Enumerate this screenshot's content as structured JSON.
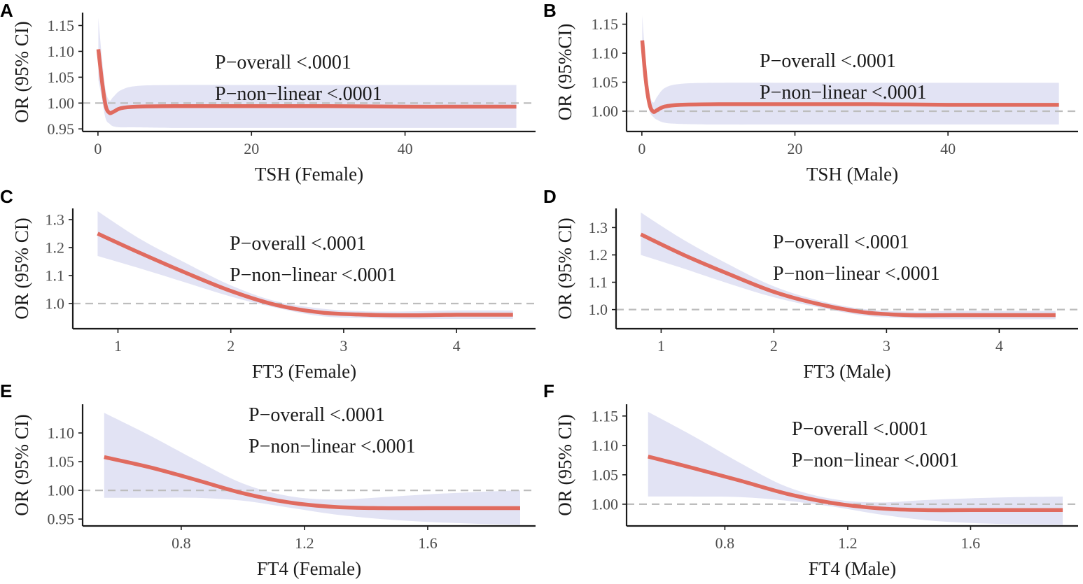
{
  "figure": {
    "ref_line_color": "#bdbdbd",
    "band_color": "#e2e3f4",
    "curve_color": "#e06b5f"
  },
  "chart_data": [
    {
      "id": "A",
      "type": "line",
      "panel_label": "A",
      "xlabel": "TSH (Female)",
      "ylabel": "OR (95% CI)",
      "xlim": [
        -2,
        57
      ],
      "ylim": [
        0.945,
        1.175
      ],
      "xticks": [
        0,
        20,
        40
      ],
      "xtick_labels": [
        "0",
        "20",
        "40"
      ],
      "yticks": [
        0.95,
        1.0,
        1.05,
        1.1,
        1.15
      ],
      "ytick_labels": [
        "0.95",
        "1.00",
        "1.05",
        "1.10",
        "1.15"
      ],
      "ref_y": 1.0,
      "annotations": [
        "P−overall <.0001",
        "P−non−linear <.0001"
      ],
      "x": [
        0.05,
        0.5,
        1.0,
        1.5,
        2.0,
        3.0,
        5.0,
        10,
        20,
        30,
        40,
        50,
        54.5
      ],
      "or": [
        1.104,
        1.045,
        0.995,
        0.981,
        0.983,
        0.99,
        0.993,
        0.994,
        0.994,
        0.994,
        0.993,
        0.993,
        0.993
      ],
      "lower": [
        1.045,
        1.01,
        0.97,
        0.96,
        0.955,
        0.953,
        0.953,
        0.952,
        0.952,
        0.952,
        0.952,
        0.952,
        0.952
      ],
      "upper": [
        1.165,
        1.09,
        1.025,
        1.005,
        1.012,
        1.025,
        1.033,
        1.035,
        1.035,
        1.035,
        1.035,
        1.035,
        1.035
      ]
    },
    {
      "id": "B",
      "type": "line",
      "panel_label": "B",
      "xlabel": "TSH (Male)",
      "ylabel": "OR (95%CI)",
      "xlim": [
        -2,
        57
      ],
      "ylim": [
        0.965,
        1.17
      ],
      "xticks": [
        0,
        20,
        40
      ],
      "xtick_labels": [
        "0",
        "20",
        "40"
      ],
      "yticks": [
        1.0,
        1.05,
        1.1,
        1.15
      ],
      "ytick_labels": [
        "1.00",
        "1.05",
        "1.10",
        "1.15"
      ],
      "ref_y": 1.0,
      "annotations": [
        "P−overall <.0001",
        "P−non−linear <.0001"
      ],
      "x": [
        0.05,
        0.5,
        1.0,
        1.5,
        2.0,
        3.0,
        5.0,
        10,
        20,
        30,
        40,
        50,
        54.5
      ],
      "or": [
        1.122,
        1.055,
        1.012,
        0.999,
        1.002,
        1.008,
        1.011,
        1.012,
        1.012,
        1.012,
        1.011,
        1.011,
        1.011
      ],
      "lower": [
        1.08,
        1.03,
        1.0,
        0.99,
        0.985,
        0.98,
        0.978,
        0.977,
        0.977,
        0.977,
        0.977,
        0.977,
        0.977
      ],
      "upper": [
        1.165,
        1.085,
        1.03,
        1.015,
        1.025,
        1.04,
        1.047,
        1.049,
        1.049,
        1.049,
        1.049,
        1.049,
        1.049
      ]
    },
    {
      "id": "C",
      "type": "line",
      "panel_label": "C",
      "xlabel": "FT3 (Female)",
      "ylabel": "OR (95% CI)",
      "xlim": [
        0.6,
        4.7
      ],
      "ylim": [
        0.91,
        1.34
      ],
      "xticks": [
        1,
        2,
        3,
        4
      ],
      "xtick_labels": [
        "1",
        "2",
        "3",
        "4"
      ],
      "yticks": [
        1.0,
        1.1,
        1.2,
        1.3
      ],
      "ytick_labels": [
        "1.0",
        "1.1",
        "1.2",
        "1.3"
      ],
      "ref_y": 1.0,
      "annotations": [
        "P−overall <.0001",
        "P−non−linear <.0001"
      ],
      "x": [
        0.82,
        1.2,
        1.6,
        2.0,
        2.4,
        2.8,
        3.2,
        3.6,
        4.0,
        4.5
      ],
      "or": [
        1.25,
        1.18,
        1.11,
        1.045,
        0.995,
        0.968,
        0.96,
        0.958,
        0.96,
        0.96
      ],
      "lower": [
        1.17,
        1.125,
        1.075,
        1.025,
        0.985,
        0.955,
        0.948,
        0.945,
        0.945,
        0.945
      ],
      "upper": [
        1.33,
        1.23,
        1.145,
        1.065,
        1.008,
        0.982,
        0.972,
        0.972,
        0.975,
        0.975
      ]
    },
    {
      "id": "D",
      "type": "line",
      "panel_label": "D",
      "xlabel": "FT3 (Male)",
      "ylabel": "OR (95% CI)",
      "xlim": [
        0.6,
        4.7
      ],
      "ylim": [
        0.93,
        1.37
      ],
      "xticks": [
        1,
        2,
        3,
        4
      ],
      "xtick_labels": [
        "1",
        "2",
        "3",
        "4"
      ],
      "yticks": [
        1.0,
        1.1,
        1.2,
        1.3
      ],
      "ytick_labels": [
        "1.0",
        "1.1",
        "1.2",
        "1.3"
      ],
      "ref_y": 1.0,
      "annotations": [
        "P−overall <.0001",
        "P−non−linear <.0001"
      ],
      "x": [
        0.82,
        1.2,
        1.6,
        2.0,
        2.4,
        2.8,
        3.2,
        3.6,
        4.0,
        4.5
      ],
      "or": [
        1.275,
        1.2,
        1.13,
        1.065,
        1.02,
        0.99,
        0.98,
        0.98,
        0.98,
        0.98
      ],
      "lower": [
        1.2,
        1.15,
        1.095,
        1.045,
        1.008,
        0.978,
        0.968,
        0.965,
        0.965,
        0.965
      ],
      "upper": [
        1.355,
        1.255,
        1.165,
        1.085,
        1.033,
        1.002,
        0.993,
        0.995,
        0.995,
        0.995
      ]
    },
    {
      "id": "E",
      "type": "line",
      "panel_label": "E",
      "xlabel": "FT4 (Female)",
      "ylabel": "OR (95% CI)",
      "xlim": [
        0.48,
        1.95
      ],
      "ylim": [
        0.938,
        1.15
      ],
      "xticks": [
        0.8,
        1.2,
        1.6
      ],
      "xtick_labels": [
        "0.8",
        "1.2",
        "1.6"
      ],
      "yticks": [
        0.95,
        1.0,
        1.05,
        1.1
      ],
      "ytick_labels": [
        "0.95",
        "1.00",
        "1.05",
        "1.10"
      ],
      "ref_y": 1.0,
      "annotations": [
        "P−overall <.0001",
        "P−non−linear <.0001"
      ],
      "x": [
        0.55,
        0.7,
        0.85,
        1.0,
        1.15,
        1.3,
        1.45,
        1.6,
        1.75,
        1.9
      ],
      "or": [
        1.058,
        1.04,
        1.018,
        0.995,
        0.979,
        0.971,
        0.969,
        0.969,
        0.969,
        0.969
      ],
      "lower": [
        0.987,
        0.987,
        0.987,
        0.982,
        0.97,
        0.958,
        0.95,
        0.945,
        0.942,
        0.94
      ],
      "upper": [
        1.135,
        1.095,
        1.052,
        1.012,
        0.99,
        0.984,
        0.988,
        0.993,
        0.997,
        1.0
      ]
    },
    {
      "id": "F",
      "type": "line",
      "panel_label": "F",
      "xlabel": "FT4 (Male)",
      "ylabel": "OR (95% CI)",
      "xlim": [
        0.48,
        1.95
      ],
      "ylim": [
        0.963,
        1.17
      ],
      "xticks": [
        0.8,
        1.2,
        1.6
      ],
      "xtick_labels": [
        "0.8",
        "1.2",
        "1.6"
      ],
      "yticks": [
        1.0,
        1.05,
        1.1,
        1.15
      ],
      "ytick_labels": [
        "1.00",
        "1.05",
        "1.10",
        "1.15"
      ],
      "ref_y": 1.0,
      "annotations": [
        "P−overall <.0001",
        "P−non−linear <.0001"
      ],
      "x": [
        0.55,
        0.7,
        0.85,
        1.0,
        1.15,
        1.3,
        1.45,
        1.6,
        1.75,
        1.9
      ],
      "or": [
        1.081,
        1.061,
        1.04,
        1.018,
        1.002,
        0.993,
        0.99,
        0.99,
        0.99,
        0.99
      ],
      "lower": [
        1.013,
        1.013,
        1.012,
        1.006,
        0.996,
        0.983,
        0.973,
        0.968,
        0.966,
        0.965
      ],
      "upper": [
        1.157,
        1.115,
        1.07,
        1.03,
        1.009,
        1.003,
        1.007,
        1.01,
        1.012,
        1.013
      ]
    }
  ]
}
